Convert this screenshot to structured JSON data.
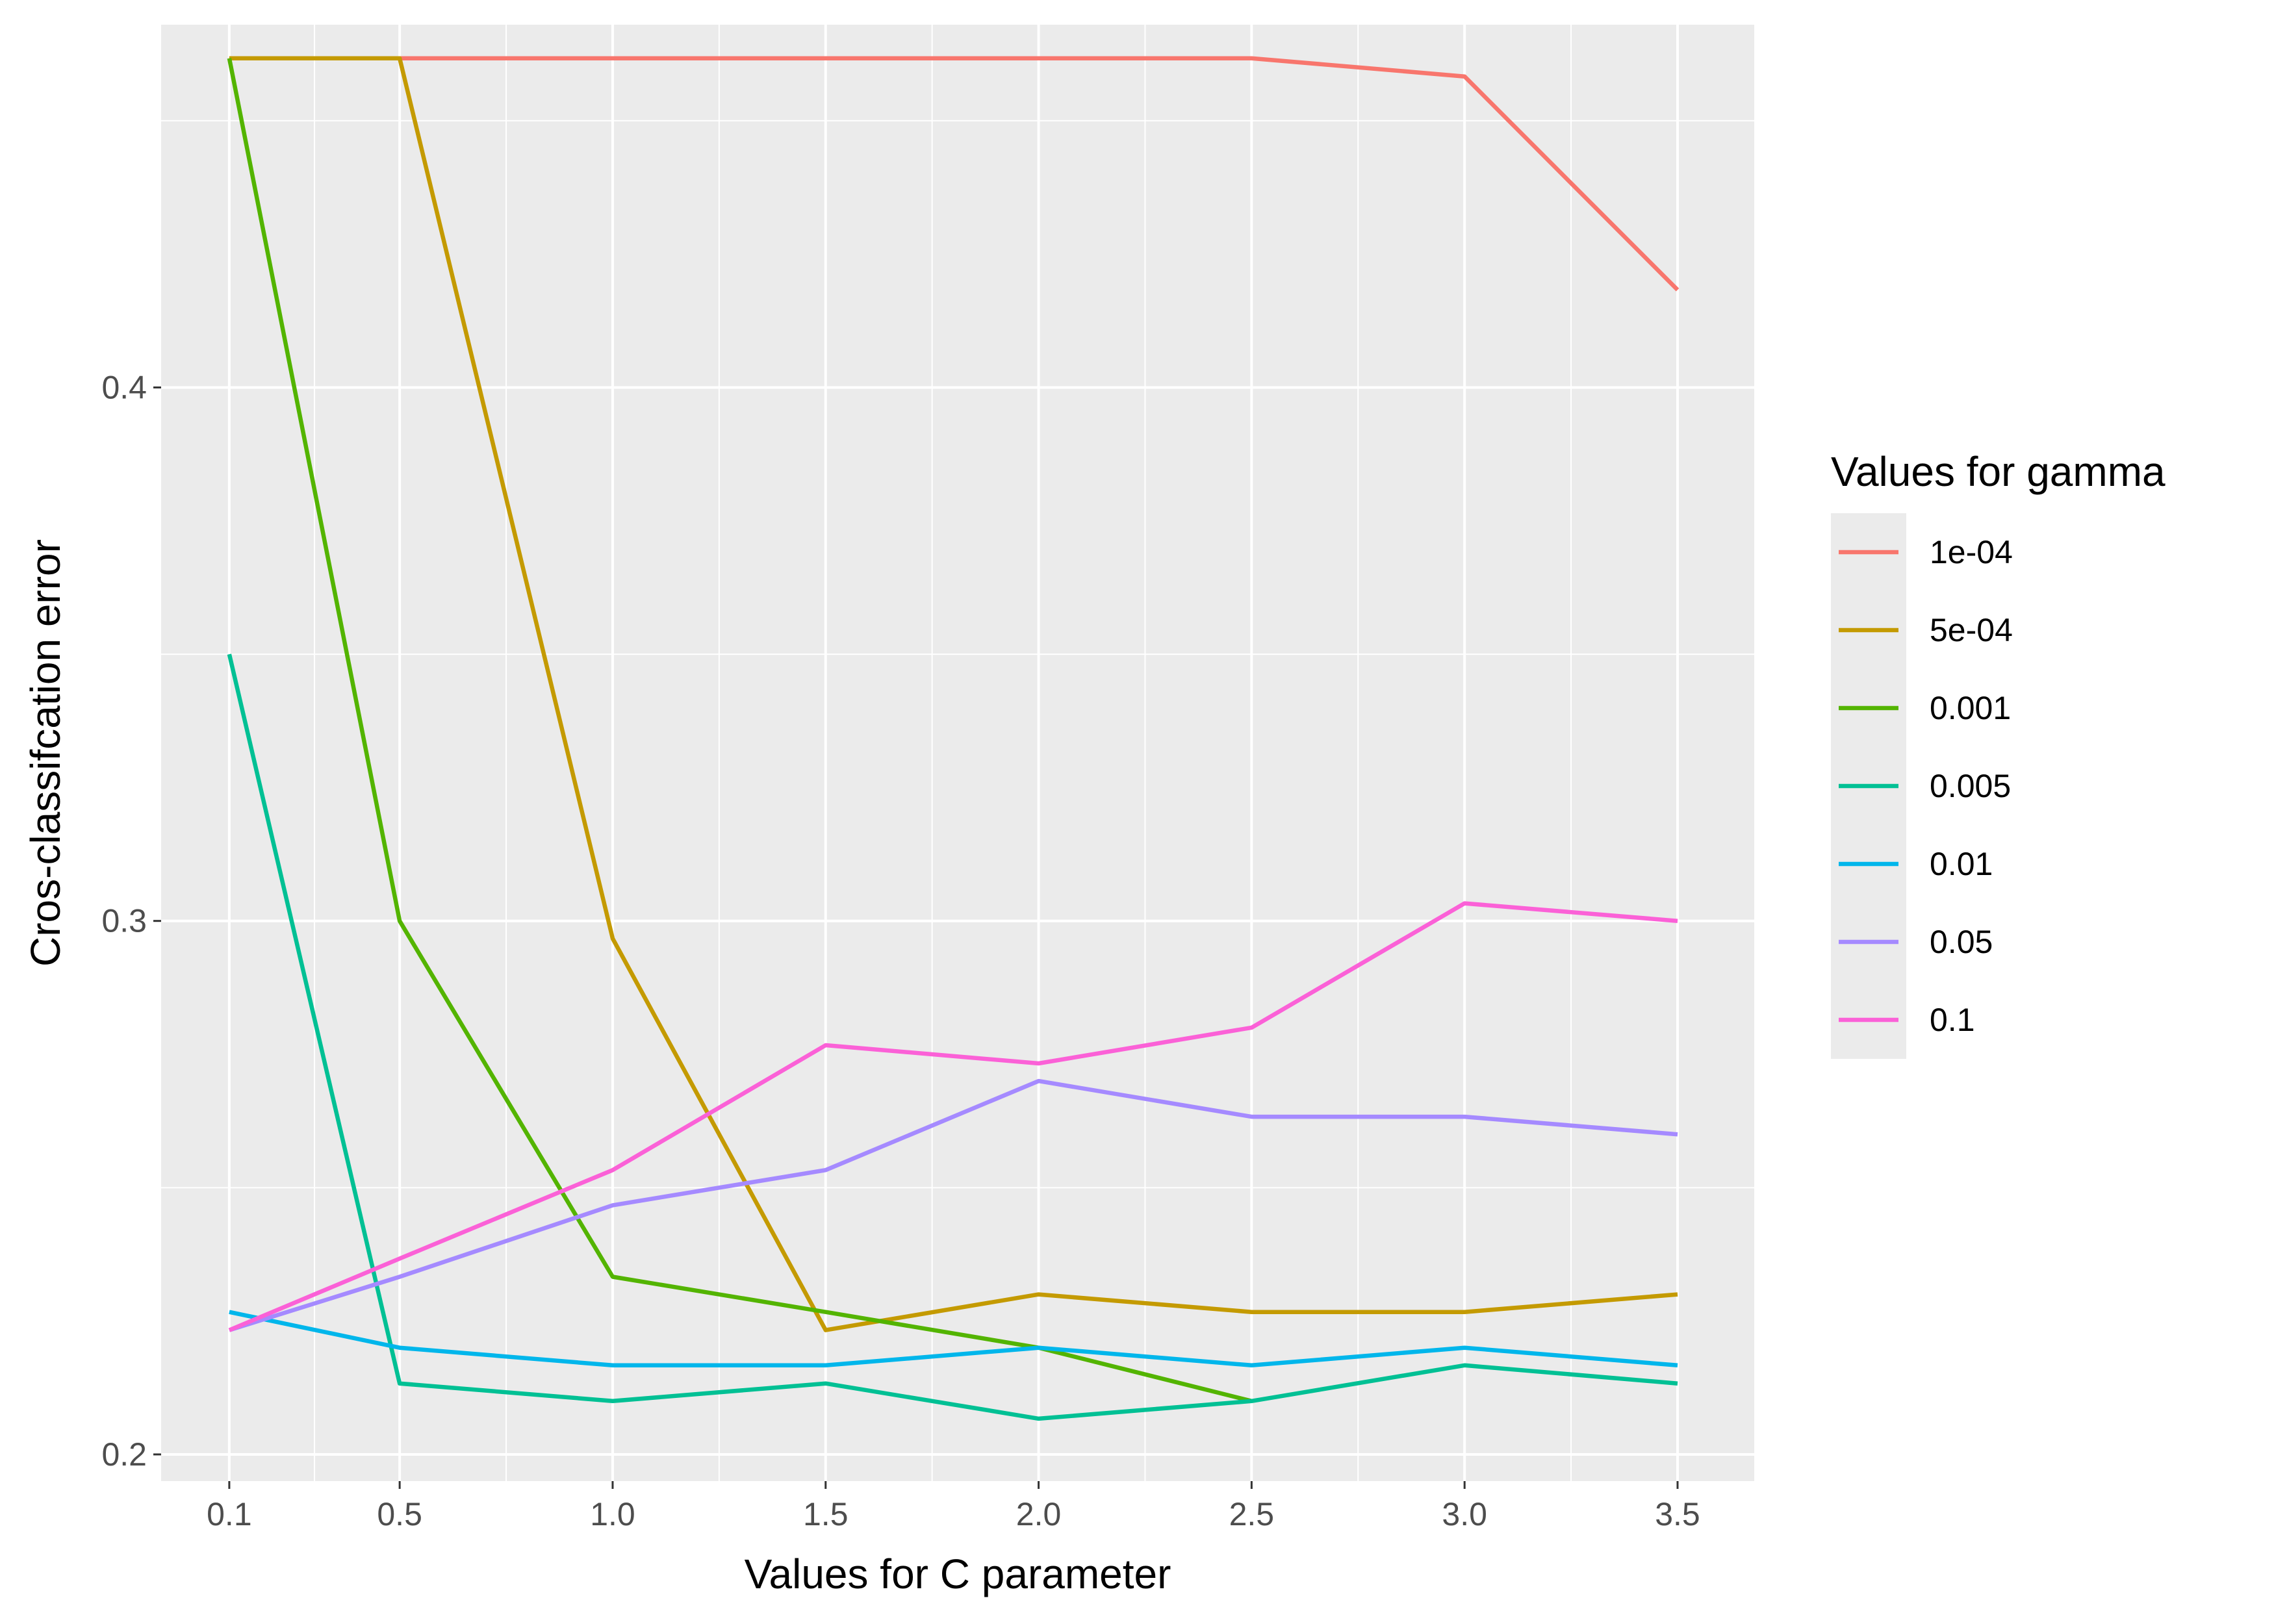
{
  "chart_data": {
    "type": "line",
    "title": "",
    "xlabel": "Values for C parameter",
    "ylabel": "Cros-classifcation error",
    "x": [
      0.1,
      0.5,
      1.0,
      1.5,
      2.0,
      2.5,
      3.0,
      3.5
    ],
    "x_tick_labels": [
      "0.1",
      "0.5",
      "1.0",
      "1.5",
      "2.0",
      "2.5",
      "3.0",
      "3.5"
    ],
    "y_ticks": [
      0.2,
      0.3,
      0.4
    ],
    "y_tick_labels": [
      "0.2",
      "0.3",
      "0.4"
    ],
    "xlim": [
      -0.06,
      3.68
    ],
    "ylim": [
      0.195,
      0.468
    ],
    "grid": true,
    "legend_position": "right",
    "legend_title": "Values for gamma",
    "background": "#ebebeb",
    "series": [
      {
        "name": "1e-04",
        "color": "#f8766d",
        "values": [
          0.4617,
          0.4617,
          0.4617,
          0.4617,
          0.4617,
          0.4617,
          0.4583,
          0.4183
        ]
      },
      {
        "name": "5e-04",
        "color": "#c49a00",
        "values": [
          0.4617,
          0.4617,
          0.2967,
          0.2233,
          0.23,
          0.2267,
          0.2267,
          0.23
        ]
      },
      {
        "name": "0.001",
        "color": "#53b400",
        "values": [
          0.4617,
          0.3,
          0.2333,
          0.2267,
          0.22,
          0.21,
          null,
          null
        ]
      },
      {
        "name": "0.005",
        "color": "#00c094",
        "values": [
          0.35,
          0.2133,
          0.21,
          0.2133,
          0.2067,
          0.21,
          0.2167,
          0.2133
        ]
      },
      {
        "name": "0.01",
        "color": "#00b6eb",
        "values": [
          0.2267,
          0.22,
          0.2167,
          0.2167,
          0.22,
          0.2167,
          0.22,
          0.2167
        ]
      },
      {
        "name": "0.05",
        "color": "#a58aff",
        "values": [
          0.2233,
          0.2333,
          0.2467,
          0.2533,
          0.27,
          0.2633,
          0.2633,
          0.26
        ]
      },
      {
        "name": "0.1",
        "color": "#fb61d7",
        "values": [
          0.2233,
          0.2367,
          0.2533,
          0.2767,
          0.2733,
          0.28,
          0.3033,
          0.3
        ]
      }
    ]
  }
}
